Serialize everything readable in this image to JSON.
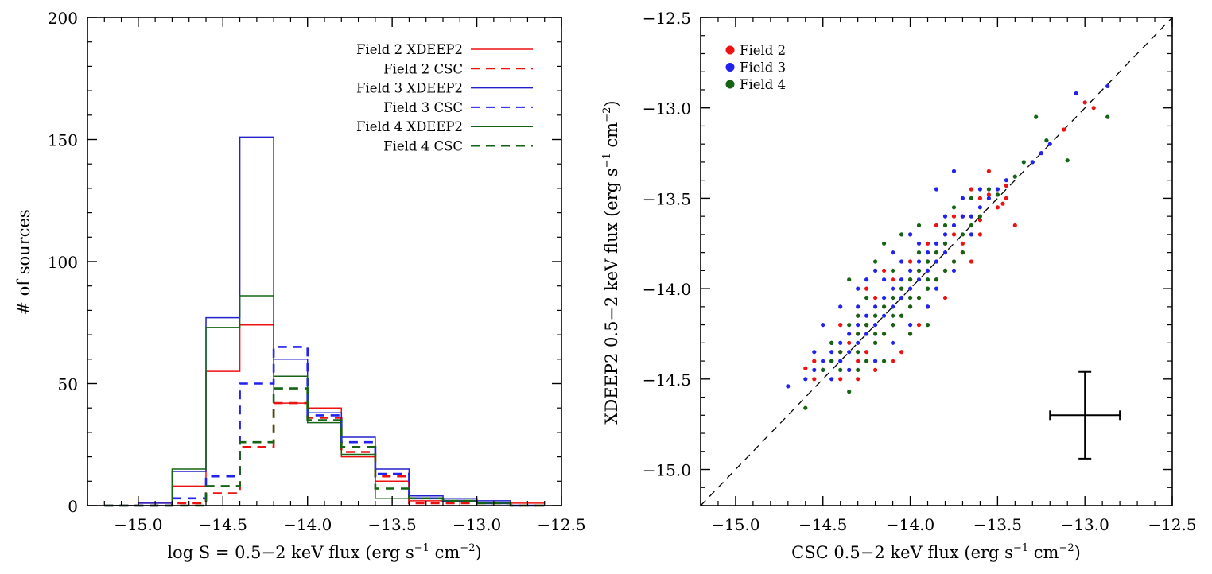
{
  "chart_data": [
    {
      "type": "histogram",
      "panel": "left",
      "xlabel_prefix": "log S = 0.5−2 keV flux (erg s",
      "xlabel_exp1": "−1",
      "xlabel_mid": " cm",
      "xlabel_exp2": "−2",
      "xlabel_suffix": ")",
      "ylabel": "# of sources",
      "xlim": [
        -15.3,
        -12.5
      ],
      "ylim": [
        0,
        200
      ],
      "xticks": [
        -15.0,
        -14.5,
        -14.0,
        -13.5,
        -13.0,
        -12.5
      ],
      "xtick_labels": [
        "−15.0",
        "−14.5",
        "−14.0",
        "−13.5",
        "−13.0",
        "−12.5"
      ],
      "yticks": [
        0,
        50,
        100,
        150,
        200
      ],
      "ytick_labels": [
        "0",
        "50",
        "100",
        "150",
        "200"
      ],
      "bin_edges": [
        -15.2,
        -15.0,
        -14.8,
        -14.6,
        -14.4,
        -14.2,
        -14.0,
        -13.8,
        -13.6,
        -13.4,
        -13.2,
        -13.0,
        -12.8,
        -12.6
      ],
      "series": [
        {
          "name": "Field 2 XDEEP2",
          "color": "#ee1111",
          "dash": "solid",
          "values": [
            0,
            1,
            8,
            55,
            74,
            42,
            40,
            20,
            10,
            2,
            2,
            1,
            1
          ]
        },
        {
          "name": "Field 2 CSC",
          "color": "#ee1111",
          "dash": "dashed",
          "values": [
            0,
            0,
            1,
            5,
            24,
            42,
            36,
            22,
            12,
            1,
            1,
            1,
            0
          ]
        },
        {
          "name": "Field 3 XDEEP2",
          "color": "#2222cc",
          "dash": "solid",
          "values": [
            0,
            1,
            14,
            77,
            151,
            60,
            38,
            28,
            15,
            4,
            3,
            2,
            0
          ]
        },
        {
          "name": "Field 3 CSC",
          "color": "#2222ee",
          "dash": "dashed",
          "values": [
            0,
            0,
            3,
            12,
            50,
            65,
            37,
            26,
            13,
            3,
            2,
            1,
            0
          ]
        },
        {
          "name": "Field 4 XDEEP2",
          "color": "#146414",
          "dash": "solid",
          "values": [
            0,
            0,
            15,
            73,
            86,
            53,
            34,
            21,
            3,
            3,
            2,
            1,
            0
          ]
        },
        {
          "name": "Field 4 CSC",
          "color": "#146414",
          "dash": "dashed",
          "values": [
            0,
            0,
            0,
            8,
            26,
            48,
            35,
            24,
            7,
            3,
            2,
            1,
            0
          ]
        }
      ],
      "legend_position": "top-right"
    },
    {
      "type": "scatter",
      "panel": "right",
      "xlabel_prefix": "CSC 0.5−2 keV flux (erg s",
      "xlabel_exp1": "−1",
      "xlabel_mid": " cm",
      "xlabel_exp2": "−2",
      "xlabel_suffix": ")",
      "ylabel_prefix": "XDEEP2 0.5−2 keV flux (erg s",
      "ylabel_exp1": "−1",
      "ylabel_mid": " cm",
      "ylabel_exp2": "−2",
      "ylabel_suffix": ")",
      "xlim": [
        -15.2,
        -12.5
      ],
      "ylim": [
        -15.2,
        -12.5
      ],
      "xticks": [
        -15.0,
        -14.5,
        -14.0,
        -13.5,
        -13.0,
        -12.5
      ],
      "xtick_labels": [
        "−15.0",
        "−14.5",
        "−14.0",
        "−13.5",
        "−13.0",
        "−12.5"
      ],
      "yticks": [
        -15.0,
        -14.5,
        -14.0,
        -13.5,
        -13.0,
        -12.5
      ],
      "ytick_labels": [
        "−15.0",
        "−14.5",
        "−14.0",
        "−13.5",
        "−13.0",
        "−12.5"
      ],
      "one_to_one_line": true,
      "error_bar": {
        "x": -13.0,
        "y": -14.7,
        "xerr": 0.2,
        "yerr": 0.24
      },
      "legend_position": "top-left",
      "series": [
        {
          "name": "Field 2",
          "color": "#ee1111",
          "points": [
            [
              -13.0,
              -12.97
            ],
            [
              -12.95,
              -13.0
            ],
            [
              -13.12,
              -13.12
            ],
            [
              -13.45,
              -13.43
            ],
            [
              -13.4,
              -13.65
            ],
            [
              -13.47,
              -13.53
            ],
            [
              -13.55,
              -13.48
            ],
            [
              -13.6,
              -13.62
            ],
            [
              -13.65,
              -13.45
            ],
            [
              -13.7,
              -13.6
            ],
            [
              -13.75,
              -13.7
            ],
            [
              -13.8,
              -13.75
            ],
            [
              -13.85,
              -13.8
            ],
            [
              -13.9,
              -13.85
            ],
            [
              -13.95,
              -13.9
            ],
            [
              -14.0,
              -13.95
            ],
            [
              -14.05,
              -14.0
            ],
            [
              -14.1,
              -14.05
            ],
            [
              -14.15,
              -14.1
            ],
            [
              -14.2,
              -14.15
            ],
            [
              -14.25,
              -14.2
            ],
            [
              -14.3,
              -14.25
            ],
            [
              -14.35,
              -14.3
            ],
            [
              -14.4,
              -14.35
            ],
            [
              -14.45,
              -14.4
            ],
            [
              -14.5,
              -14.45
            ],
            [
              -14.55,
              -14.5
            ],
            [
              -14.6,
              -14.44
            ],
            [
              -14.1,
              -14.2
            ],
            [
              -14.0,
              -14.1
            ],
            [
              -13.9,
              -14.0
            ],
            [
              -13.8,
              -13.9
            ],
            [
              -14.2,
              -14.3
            ],
            [
              -14.3,
              -14.4
            ],
            [
              -13.7,
              -13.8
            ],
            [
              -13.6,
              -13.7
            ],
            [
              -14.15,
              -14.25
            ],
            [
              -14.05,
              -14.15
            ],
            [
              -13.95,
              -14.05
            ],
            [
              -13.85,
              -13.95
            ],
            [
              -14.25,
              -14.35
            ],
            [
              -14.35,
              -14.45
            ],
            [
              -13.75,
              -13.85
            ],
            [
              -14.1,
              -13.95
            ],
            [
              -14.0,
              -13.85
            ],
            [
              -14.2,
              -14.05
            ],
            [
              -13.9,
              -13.75
            ],
            [
              -14.3,
              -14.15
            ],
            [
              -13.55,
              -13.35
            ],
            [
              -13.7,
              -13.75
            ],
            [
              -13.75,
              -13.6
            ],
            [
              -14.15,
              -13.9
            ],
            [
              -14.4,
              -14.2
            ],
            [
              -13.65,
              -13.85
            ],
            [
              -14.05,
              -14.35
            ],
            [
              -14.2,
              -14.45
            ],
            [
              -13.95,
              -14.2
            ],
            [
              -14.45,
              -14.3
            ],
            [
              -13.85,
              -13.65
            ],
            [
              -13.5,
              -13.55
            ],
            [
              -14.0,
              -14.25
            ],
            [
              -14.1,
              -14.4
            ],
            [
              -13.8,
              -14.05
            ],
            [
              -14.25,
              -14.0
            ],
            [
              -14.4,
              -14.5
            ],
            [
              -13.6,
              -13.5
            ],
            [
              -13.45,
              -13.5
            ],
            [
              -14.3,
              -14.5
            ],
            [
              -14.55,
              -14.4
            ],
            [
              -13.9,
              -14.1
            ]
          ]
        },
        {
          "name": "Field 3",
          "color": "#2222ee",
          "points": [
            [
              -12.87,
              -12.88
            ],
            [
              -13.05,
              -12.92
            ],
            [
              -13.2,
              -13.2
            ],
            [
              -13.25,
              -13.25
            ],
            [
              -13.3,
              -13.3
            ],
            [
              -13.45,
              -13.4
            ],
            [
              -13.5,
              -13.45
            ],
            [
              -13.55,
              -13.5
            ],
            [
              -13.6,
              -13.55
            ],
            [
              -13.65,
              -13.6
            ],
            [
              -13.75,
              -13.35
            ],
            [
              -13.85,
              -13.45
            ],
            [
              -14.7,
              -14.54
            ],
            [
              -14.6,
              -14.5
            ],
            [
              -14.55,
              -14.45
            ],
            [
              -14.5,
              -14.4
            ],
            [
              -14.45,
              -14.35
            ],
            [
              -14.4,
              -14.3
            ],
            [
              -14.35,
              -14.25
            ],
            [
              -14.3,
              -14.2
            ],
            [
              -14.25,
              -14.15
            ],
            [
              -14.2,
              -14.1
            ],
            [
              -14.15,
              -14.05
            ],
            [
              -14.1,
              -14.0
            ],
            [
              -14.05,
              -13.95
            ],
            [
              -14.0,
              -13.9
            ],
            [
              -13.95,
              -13.85
            ],
            [
              -13.9,
              -13.8
            ],
            [
              -13.85,
              -13.75
            ],
            [
              -13.8,
              -13.7
            ],
            [
              -13.75,
              -13.65
            ],
            [
              -13.7,
              -13.6
            ],
            [
              -14.5,
              -14.2
            ],
            [
              -14.45,
              -14.3
            ],
            [
              -14.4,
              -14.4
            ],
            [
              -14.35,
              -14.35
            ],
            [
              -14.3,
              -14.3
            ],
            [
              -14.25,
              -14.25
            ],
            [
              -14.2,
              -14.2
            ],
            [
              -14.15,
              -14.15
            ],
            [
              -14.1,
              -14.1
            ],
            [
              -14.05,
              -14.05
            ],
            [
              -14.0,
              -14.0
            ],
            [
              -13.95,
              -13.95
            ],
            [
              -13.9,
              -13.9
            ],
            [
              -13.85,
              -13.85
            ],
            [
              -13.8,
              -13.8
            ],
            [
              -14.3,
              -14.0
            ],
            [
              -14.2,
              -13.9
            ],
            [
              -14.1,
              -13.8
            ],
            [
              -14.0,
              -13.7
            ],
            [
              -14.4,
              -14.1
            ],
            [
              -14.1,
              -14.3
            ],
            [
              -14.0,
              -14.2
            ],
            [
              -13.9,
              -14.1
            ],
            [
              -14.2,
              -14.4
            ],
            [
              -14.25,
              -13.95
            ],
            [
              -13.95,
              -13.75
            ],
            [
              -14.35,
              -14.45
            ],
            [
              -14.45,
              -14.5
            ],
            [
              -13.7,
              -13.5
            ],
            [
              -13.6,
              -13.45
            ],
            [
              -14.15,
              -13.95
            ],
            [
              -13.8,
              -13.6
            ],
            [
              -13.65,
              -13.7
            ],
            [
              -14.05,
              -13.85
            ],
            [
              -14.3,
              -14.1
            ],
            [
              -13.85,
              -14.0
            ],
            [
              -14.1,
              -14.2
            ],
            [
              -13.75,
              -13.9
            ],
            [
              -14.5,
              -14.45
            ],
            [
              -14.55,
              -14.35
            ]
          ]
        },
        {
          "name": "Field 4",
          "color": "#146414",
          "points": [
            [
              -12.87,
              -13.05
            ],
            [
              -13.1,
              -13.29
            ],
            [
              -13.28,
              -13.05
            ],
            [
              -13.22,
              -13.18
            ],
            [
              -13.35,
              -13.3
            ],
            [
              -13.4,
              -13.38
            ],
            [
              -13.5,
              -13.48
            ],
            [
              -13.6,
              -13.6
            ],
            [
              -13.7,
              -13.7
            ],
            [
              -13.8,
              -13.75
            ],
            [
              -13.9,
              -13.85
            ],
            [
              -14.0,
              -13.95
            ],
            [
              -14.1,
              -14.05
            ],
            [
              -14.2,
              -14.15
            ],
            [
              -14.3,
              -14.25
            ],
            [
              -14.4,
              -14.35
            ],
            [
              -14.5,
              -14.45
            ],
            [
              -14.6,
              -14.66
            ],
            [
              -14.35,
              -14.57
            ],
            [
              -14.3,
              -14.45
            ],
            [
              -14.25,
              -14.4
            ],
            [
              -14.2,
              -14.3
            ],
            [
              -14.15,
              -14.25
            ],
            [
              -14.1,
              -14.2
            ],
            [
              -14.05,
              -14.15
            ],
            [
              -14.0,
              -14.1
            ],
            [
              -13.95,
              -14.05
            ],
            [
              -13.9,
              -14.0
            ],
            [
              -13.85,
              -13.95
            ],
            [
              -13.8,
              -13.9
            ],
            [
              -13.75,
              -13.85
            ],
            [
              -14.35,
              -13.95
            ],
            [
              -14.2,
              -13.85
            ],
            [
              -14.15,
              -13.75
            ],
            [
              -14.05,
              -13.7
            ],
            [
              -13.95,
              -13.65
            ],
            [
              -13.75,
              -13.55
            ],
            [
              -13.65,
              -13.5
            ],
            [
              -14.45,
              -14.3
            ],
            [
              -14.25,
              -14.2
            ],
            [
              -14.15,
              -14.1
            ],
            [
              -14.05,
              -14.0
            ],
            [
              -13.95,
              -13.9
            ],
            [
              -13.85,
              -13.8
            ],
            [
              -14.4,
              -14.45
            ],
            [
              -14.3,
              -14.35
            ],
            [
              -14.2,
              -14.25
            ],
            [
              -14.1,
              -14.15
            ],
            [
              -14.0,
              -14.05
            ],
            [
              -13.9,
              -13.95
            ],
            [
              -13.7,
              -13.8
            ],
            [
              -13.55,
              -13.45
            ],
            [
              -14.25,
              -14.05
            ],
            [
              -14.1,
              -13.9
            ],
            [
              -13.95,
              -13.8
            ],
            [
              -14.35,
              -14.2
            ],
            [
              -14.45,
              -14.4
            ],
            [
              -13.8,
              -13.65
            ],
            [
              -14.0,
              -14.25
            ],
            [
              -14.15,
              -14.4
            ],
            [
              -13.9,
              -14.2
            ],
            [
              -14.3,
              -14.15
            ],
            [
              -13.65,
              -13.65
            ]
          ]
        }
      ]
    }
  ]
}
